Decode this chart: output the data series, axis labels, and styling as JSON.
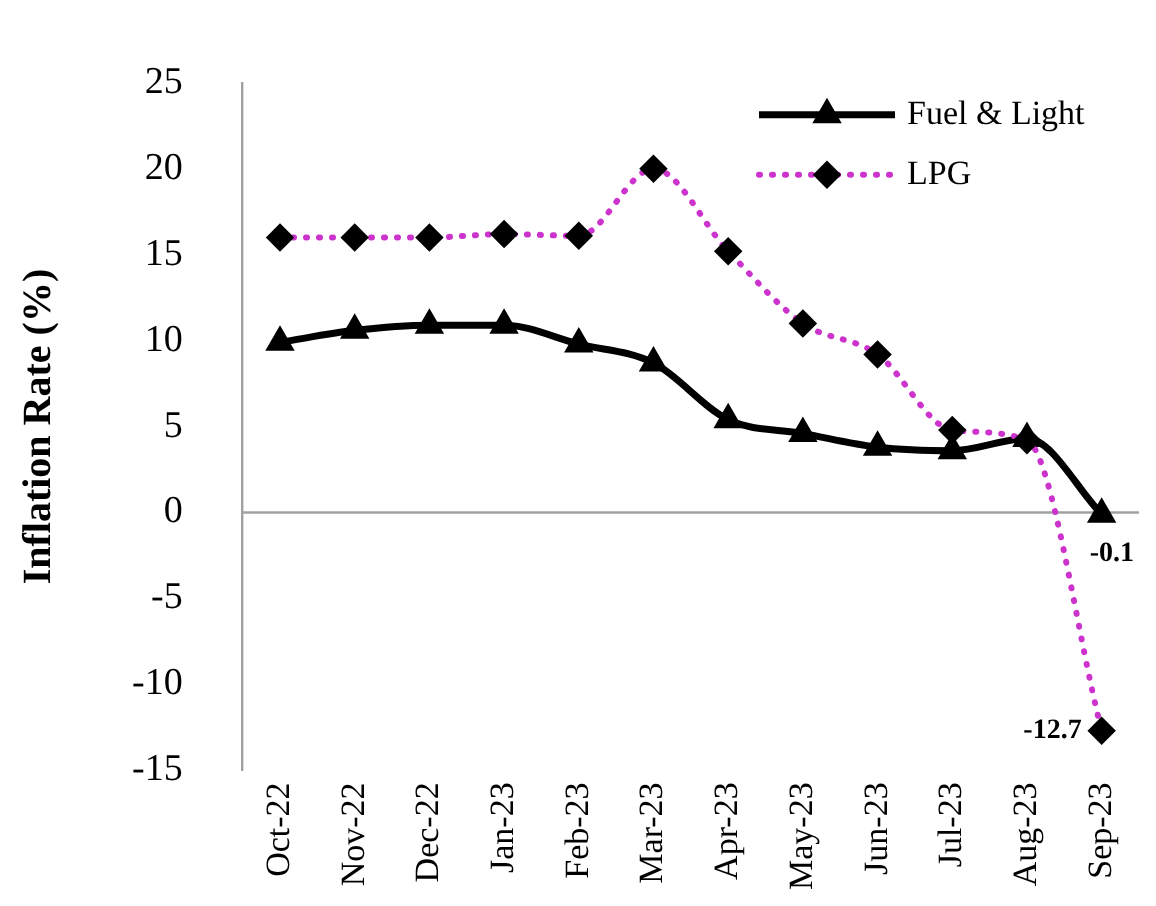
{
  "chart_data": {
    "type": "line",
    "ylabel": "Inflation Rate (%)",
    "categories": [
      "Oct-22",
      "Nov-22",
      "Dec-22",
      "Jan-23",
      "Feb-23",
      "Mar-23",
      "Apr-23",
      "May-23",
      "Jun-23",
      "Jul-23",
      "Aug-23",
      "Sep-23"
    ],
    "series": [
      {
        "name": "Fuel & Light",
        "color": "#000000",
        "marker": "triangle",
        "line_style": "solid",
        "values": [
          9.9,
          10.6,
          10.9,
          10.9,
          9.8,
          8.7,
          5.4,
          4.6,
          3.8,
          3.6,
          4.3,
          -0.1
        ],
        "value_labels": [
          null,
          null,
          null,
          null,
          null,
          null,
          null,
          null,
          null,
          null,
          null,
          "-0.1"
        ]
      },
      {
        "name": "LPG",
        "color": "#cc33cc",
        "marker": "diamond",
        "line_style": "dotted",
        "values": [
          16.0,
          16.0,
          16.0,
          16.2,
          16.1,
          20.0,
          15.2,
          11.0,
          9.2,
          4.8,
          4.2,
          -12.7
        ],
        "value_labels": [
          null,
          null,
          null,
          null,
          null,
          null,
          null,
          null,
          null,
          null,
          null,
          "-12.7"
        ]
      }
    ],
    "ylim": [
      -15,
      25
    ],
    "yticks": [
      -15,
      -10,
      -5,
      0,
      5,
      10,
      15,
      20,
      25
    ],
    "ref_lines": [
      {
        "axis": "y",
        "value": 0,
        "color": "#a0a0a0"
      }
    ],
    "grid": false,
    "legend": "top right"
  }
}
